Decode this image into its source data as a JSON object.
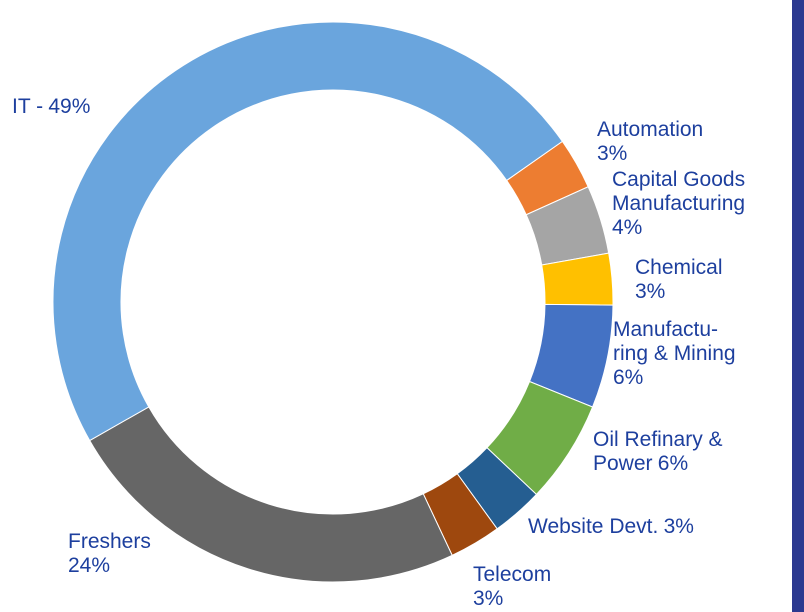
{
  "chart_data": {
    "type": "pie",
    "donut": true,
    "categories": [
      "Automation",
      "Capital Goods Manufacturing",
      "Chemical",
      "Manufactu-ring & Mining",
      "Oil Refinary & Power",
      "Website Devt.",
      "Telecom",
      "Freshers",
      "IT -"
    ],
    "values": [
      3,
      4,
      3,
      6,
      6,
      3,
      3,
      24,
      49
    ],
    "value_labels": [
      "3%",
      "4%",
      "3%",
      "6%",
      "6%",
      "3%",
      "3%",
      "24%",
      "49%"
    ],
    "colors": [
      "#ed7d31",
      "#a5a5a5",
      "#ffc000",
      "#4472c4",
      "#70ad47",
      "#255e91",
      "#9e480e",
      "#666666",
      "#6aa5dd"
    ]
  }
}
